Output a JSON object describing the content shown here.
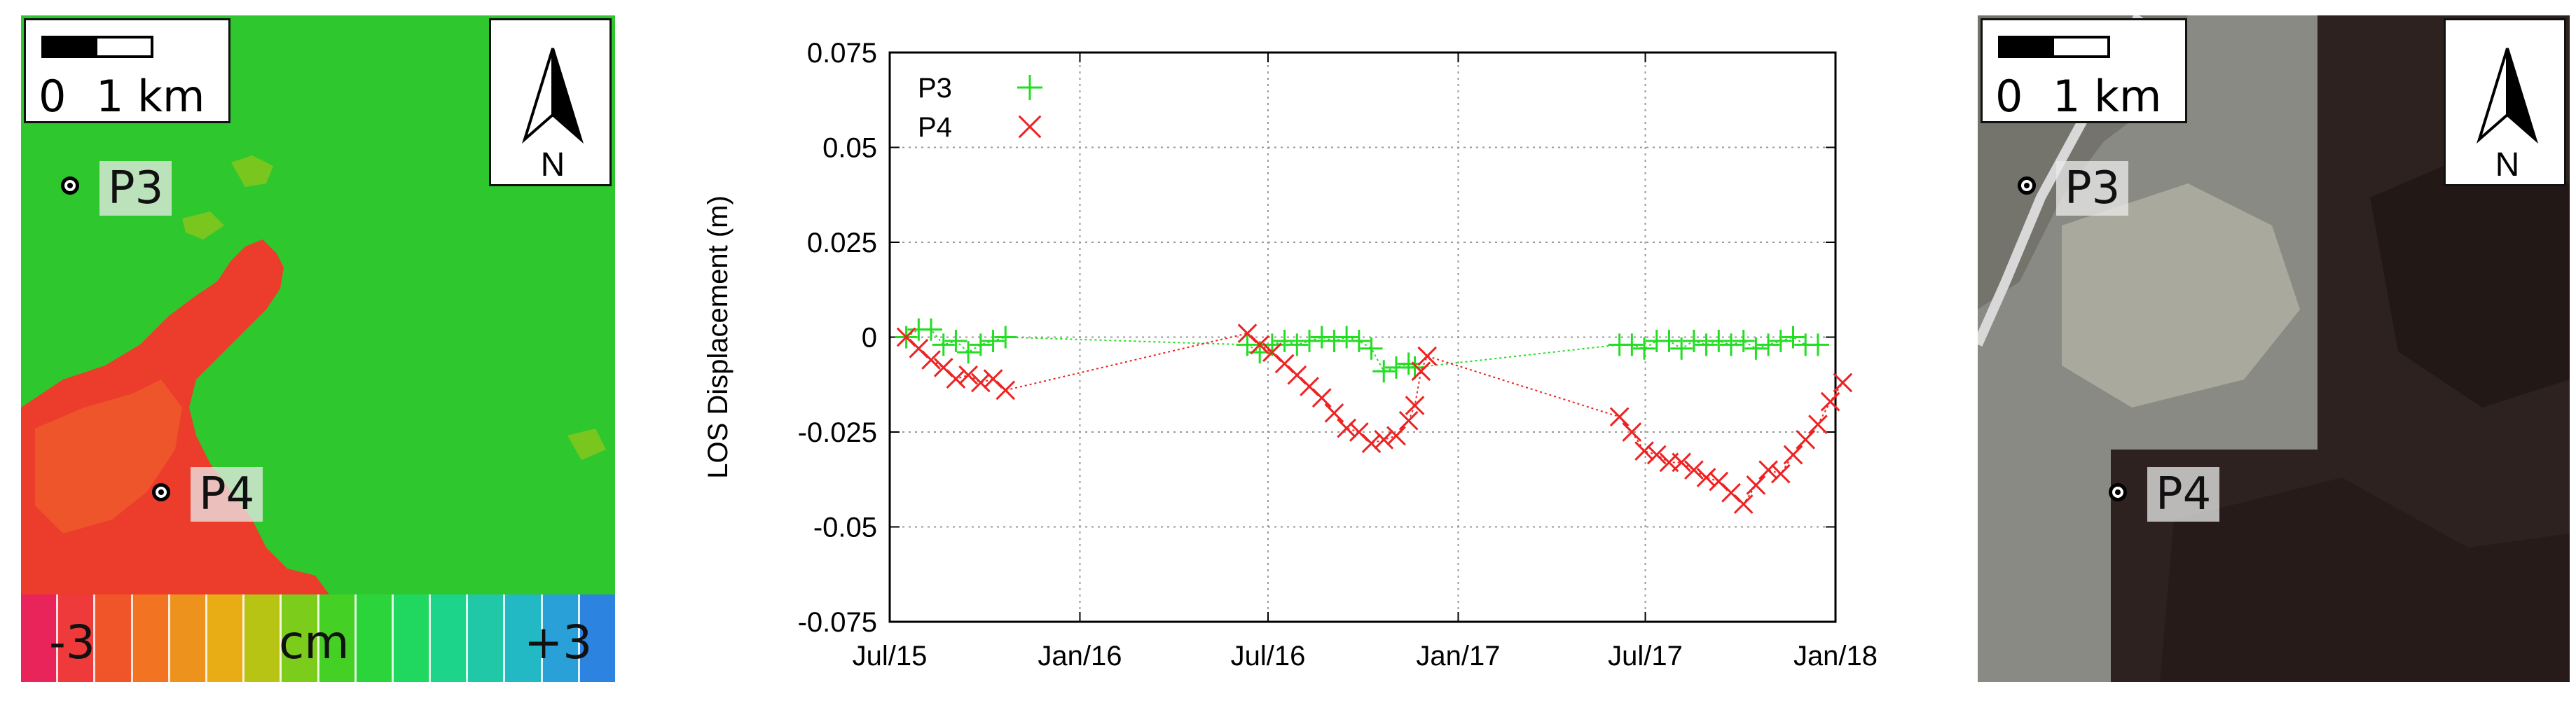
{
  "left_map": {
    "scale_zero": "0",
    "scale_one": "1 km",
    "north_label": "N",
    "p3_label": "P3",
    "p4_label": "P4",
    "colorbar": {
      "min_label": "-3",
      "unit_label": "cm",
      "max_label": "+3",
      "colors": [
        "#e8245a",
        "#ee3a3a",
        "#f0552a",
        "#f27422",
        "#ee921e",
        "#e8ac14",
        "#b8c414",
        "#7ccc1c",
        "#44d024",
        "#2cd43c",
        "#20d860",
        "#1cd48a",
        "#20c8a8",
        "#22b8c4",
        "#2aa0d8",
        "#2c84e0"
      ]
    },
    "colors": {
      "background": "#2ec82e",
      "subsidence": "#ec3c2c"
    }
  },
  "right_map": {
    "scale_zero": "0",
    "scale_one": "1 km",
    "north_label": "N",
    "p3_label": "P3",
    "p4_label": "P4"
  },
  "chart_data": {
    "type": "scatter",
    "ylabel": "LOS Displacement (m)",
    "xlabel": "",
    "title": "",
    "x_ticks": [
      "Jul/15",
      "Jan/16",
      "Jul/16",
      "Jan/17",
      "Jul/17",
      "Jan/18"
    ],
    "x_range": [
      "2015-07-01",
      "2018-01-01"
    ],
    "y_ticks": [
      "0.075",
      "0.05",
      "0.025",
      "0",
      "-0.025",
      "-0.05",
      "-0.075"
    ],
    "ylim": [
      -0.075,
      0.075
    ],
    "grid": true,
    "legend_position": "top-left",
    "series": [
      {
        "name": "P3",
        "color": "#22dd22",
        "marker": "plus",
        "points": [
          [
            "2015-07-17",
            0.0
          ],
          [
            "2015-07-29",
            0.002
          ],
          [
            "2015-08-10",
            0.002
          ],
          [
            "2015-08-22",
            -0.002
          ],
          [
            "2015-09-03",
            -0.001
          ],
          [
            "2015-09-15",
            -0.004
          ],
          [
            "2015-09-27",
            -0.002
          ],
          [
            "2015-10-09",
            -0.001
          ],
          [
            "2015-10-21",
            0.0
          ],
          [
            "2016-06-11",
            -0.002
          ],
          [
            "2016-06-23",
            -0.004
          ],
          [
            "2016-07-05",
            -0.002
          ],
          [
            "2016-07-17",
            -0.001
          ],
          [
            "2016-07-29",
            -0.002
          ],
          [
            "2016-08-10",
            -0.001
          ],
          [
            "2016-08-22",
            0.0
          ],
          [
            "2016-09-03",
            -0.001
          ],
          [
            "2016-09-15",
            0.0
          ],
          [
            "2016-09-27",
            -0.001
          ],
          [
            "2016-10-09",
            -0.003
          ],
          [
            "2016-10-21",
            -0.009
          ],
          [
            "2016-11-02",
            -0.008
          ],
          [
            "2016-11-14",
            -0.007
          ],
          [
            "2016-11-20",
            -0.008
          ],
          [
            "2017-06-06",
            -0.002
          ],
          [
            "2017-06-18",
            -0.002
          ],
          [
            "2017-06-30",
            -0.003
          ],
          [
            "2017-07-12",
            -0.001
          ],
          [
            "2017-07-24",
            -0.001
          ],
          [
            "2017-08-05",
            -0.003
          ],
          [
            "2017-08-17",
            -0.001
          ],
          [
            "2017-08-29",
            -0.002
          ],
          [
            "2017-09-10",
            -0.001
          ],
          [
            "2017-09-22",
            -0.002
          ],
          [
            "2017-10-04",
            -0.001
          ],
          [
            "2017-10-16",
            -0.003
          ],
          [
            "2017-10-28",
            -0.002
          ],
          [
            "2017-11-09",
            -0.001
          ],
          [
            "2017-11-21",
            0.0
          ],
          [
            "2017-12-03",
            -0.002
          ],
          [
            "2017-12-15",
            -0.002
          ]
        ]
      },
      {
        "name": "P4",
        "color": "#ee2222",
        "marker": "cross",
        "points": [
          [
            "2015-07-17",
            0.0
          ],
          [
            "2015-07-29",
            -0.003
          ],
          [
            "2015-08-10",
            -0.006
          ],
          [
            "2015-08-22",
            -0.008
          ],
          [
            "2015-09-03",
            -0.011
          ],
          [
            "2015-09-15",
            -0.01
          ],
          [
            "2015-09-27",
            -0.012
          ],
          [
            "2015-10-09",
            -0.011
          ],
          [
            "2015-10-21",
            -0.014
          ],
          [
            "2016-06-11",
            0.001
          ],
          [
            "2016-06-23",
            -0.002
          ],
          [
            "2016-07-05",
            -0.004
          ],
          [
            "2016-07-17",
            -0.007
          ],
          [
            "2016-07-29",
            -0.01
          ],
          [
            "2016-08-10",
            -0.013
          ],
          [
            "2016-08-22",
            -0.016
          ],
          [
            "2016-09-03",
            -0.02
          ],
          [
            "2016-09-15",
            -0.024
          ],
          [
            "2016-09-27",
            -0.025
          ],
          [
            "2016-10-09",
            -0.028
          ],
          [
            "2016-10-21",
            -0.027
          ],
          [
            "2016-11-02",
            -0.026
          ],
          [
            "2016-11-14",
            -0.022
          ],
          [
            "2016-11-20",
            -0.018
          ],
          [
            "2016-11-26",
            -0.009
          ],
          [
            "2016-12-02",
            -0.005
          ],
          [
            "2017-06-06",
            -0.021
          ],
          [
            "2017-06-18",
            -0.025
          ],
          [
            "2017-06-30",
            -0.03
          ],
          [
            "2017-07-12",
            -0.031
          ],
          [
            "2017-07-24",
            -0.033
          ],
          [
            "2017-08-05",
            -0.033
          ],
          [
            "2017-08-17",
            -0.035
          ],
          [
            "2017-08-29",
            -0.037
          ],
          [
            "2017-09-10",
            -0.038
          ],
          [
            "2017-09-22",
            -0.041
          ],
          [
            "2017-10-04",
            -0.044
          ],
          [
            "2017-10-16",
            -0.039
          ],
          [
            "2017-10-28",
            -0.035
          ],
          [
            "2017-11-09",
            -0.036
          ],
          [
            "2017-11-21",
            -0.031
          ],
          [
            "2017-12-03",
            -0.027
          ],
          [
            "2017-12-15",
            -0.023
          ],
          [
            "2017-12-27",
            -0.017
          ],
          [
            "2018-01-08",
            -0.012
          ]
        ]
      }
    ]
  }
}
